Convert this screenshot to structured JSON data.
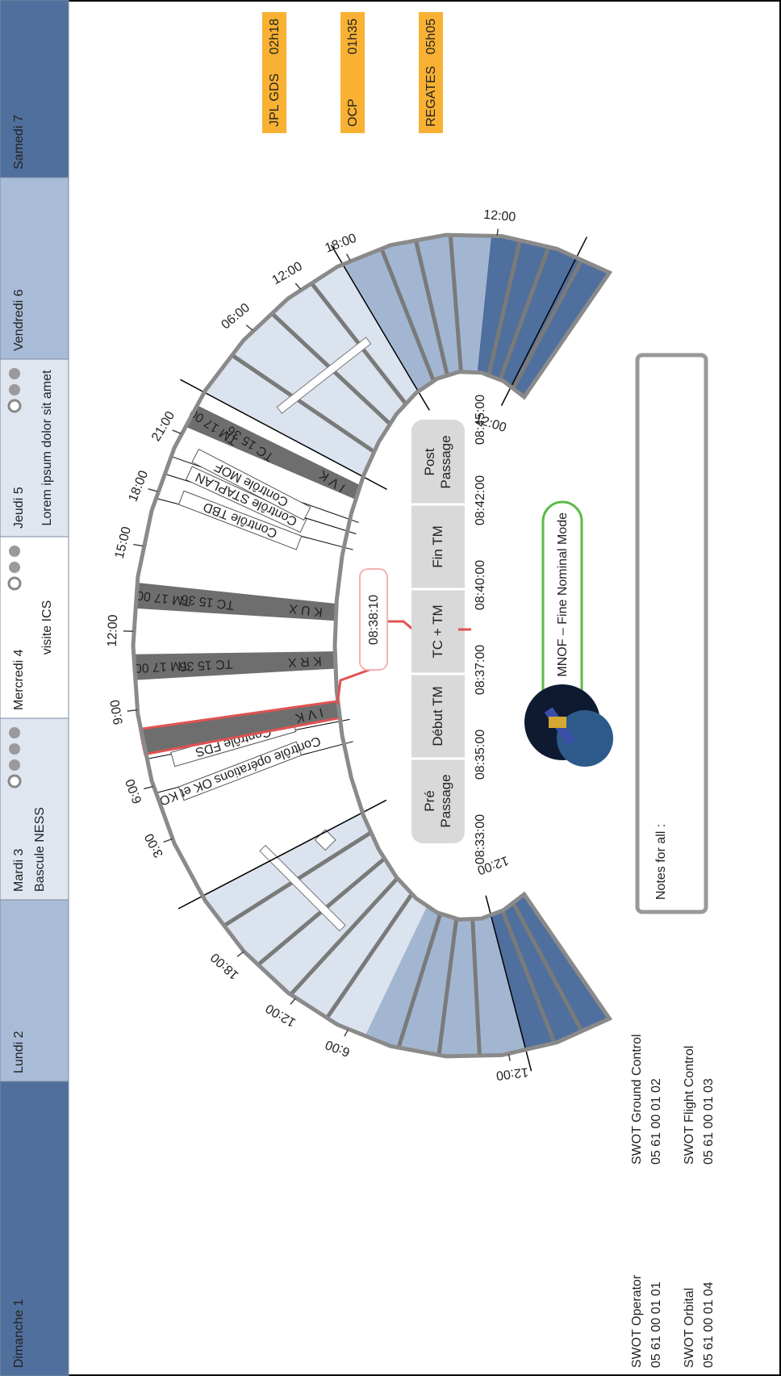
{
  "tabs": [
    {
      "day": "Dimanche 1"
    },
    {
      "day": "Lundi 2"
    },
    {
      "day": "Mardi 3",
      "note": "Bascule NESS"
    },
    {
      "day": "Mercredi 4",
      "note": "visite ICS"
    },
    {
      "day": "Jeudi 5",
      "note": "Lorem ipsum dolor sit amet"
    },
    {
      "day": "Vendredi 6"
    },
    {
      "day": "Samedi 7"
    }
  ],
  "durations": [
    {
      "label": "JPL GDS",
      "value": "02h18"
    },
    {
      "label": "OCP",
      "value": "01h35"
    },
    {
      "label": "REGATES",
      "value": "05h05"
    }
  ],
  "ring_times": [
    "18:00",
    "12:00",
    "6:00",
    "3:00",
    "6:00",
    "9:00",
    "12:00",
    "15:00",
    "18:00",
    "21:00",
    "06:00",
    "12:00",
    "18:00",
    "12:00",
    "12:00",
    "12:00",
    "12:00"
  ],
  "controls": [
    "Contrôle opérations OK et KO",
    "Contrôle FDS",
    "Contrôle TBD",
    "Contrôle STAPLAN",
    "Contrôle MOF"
  ],
  "passes": [
    {
      "stations": "I V K"
    },
    {
      "tm": "TM 17 00",
      "tc": "TC 15 36",
      "stations": "K R X"
    },
    {
      "tm": "TM 17 00",
      "tc": "TC 15 36",
      "stations": "K U X"
    },
    {
      "tm": "TM 17 00",
      "tc": "TC 15 36",
      "stations": "I V K"
    }
  ],
  "clock": "08:38:10",
  "steps": [
    "Pré Passage",
    "Début TM",
    "TC + TM",
    "Fin TM",
    "Post Passage"
  ],
  "step_times": [
    "08:33:00",
    "08:35:00",
    "08:37:00",
    "08:40:00",
    "08:42:00",
    "08:45:00"
  ],
  "mode": "MNOF – Fine Nominal Mode",
  "notes": "Notes for all :",
  "contacts": [
    {
      "name": "SWOT Operator",
      "phone": "05 61 00 01 01"
    },
    {
      "name": "SWOT Ground Control",
      "phone": "05 61 00 01 02"
    },
    {
      "name": "SWOT Orbital",
      "phone": "05 61 00 01 04"
    },
    {
      "name": "SWOT Flight Control",
      "phone": "05 61 00 01 03"
    }
  ]
}
